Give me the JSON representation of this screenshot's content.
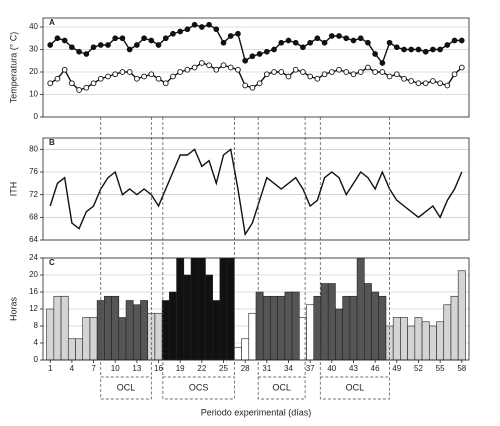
{
  "chart_data": [
    {
      "type": "line",
      "panel_label": "A",
      "ylabel": "Temperatura (° C)",
      "ylim": [
        0,
        44
      ],
      "yticks": [
        0,
        10,
        20,
        30,
        40
      ],
      "grid": true,
      "series": [
        {
          "name": "max",
          "color": "#111",
          "marker": "filled",
          "values": [
            32,
            35,
            34,
            31,
            29,
            28,
            31,
            32,
            32,
            35,
            35,
            30,
            32,
            35,
            34,
            32,
            35,
            37,
            38,
            39,
            41,
            40,
            41,
            39,
            33,
            36,
            37,
            25,
            27,
            28,
            29,
            30,
            33,
            34,
            33,
            31,
            33,
            35,
            33,
            36,
            36,
            35,
            34,
            35,
            33,
            28,
            24,
            33,
            31,
            30,
            30,
            30,
            29,
            30,
            30,
            32,
            34,
            34
          ]
        },
        {
          "name": "min",
          "color": "#111",
          "marker": "open",
          "values": [
            15,
            17,
            21,
            15,
            12,
            13,
            15,
            17,
            18,
            19,
            20,
            20,
            17,
            18,
            19,
            17,
            15,
            18,
            20,
            21,
            22,
            24,
            23,
            21,
            23,
            22,
            21,
            14,
            13,
            15,
            19,
            20,
            20,
            18,
            21,
            20,
            18,
            17,
            19,
            20,
            21,
            20,
            19,
            20,
            22,
            20,
            20,
            18,
            19,
            17,
            16,
            15,
            15,
            16,
            15,
            14,
            19,
            22
          ]
        }
      ]
    },
    {
      "type": "line",
      "panel_label": "B",
      "ylabel": "ITH",
      "ylim": [
        64,
        82
      ],
      "yticks": [
        64,
        68,
        72,
        76,
        80
      ],
      "grid": true,
      "series": [
        {
          "name": "ITH",
          "color": "#111",
          "marker": "none",
          "values": [
            70,
            74,
            75,
            67,
            66,
            69,
            70,
            73,
            75,
            76,
            72,
            73,
            72,
            73,
            72,
            70,
            73,
            76,
            79,
            79,
            80,
            77,
            78,
            74,
            79,
            80,
            73,
            65,
            67,
            71,
            75,
            74,
            73,
            74,
            75,
            73,
            70,
            71,
            75,
            76,
            75,
            72,
            74,
            76,
            75,
            73,
            76,
            73,
            71,
            70,
            69,
            68,
            69,
            70,
            68,
            71,
            73,
            76
          ]
        }
      ]
    },
    {
      "type": "bar",
      "panel_label": "C",
      "ylabel": "Horas",
      "ylim": [
        0,
        24
      ],
      "yticks": [
        0,
        4,
        8,
        12,
        16,
        20,
        24
      ],
      "grid": true,
      "values": [
        12,
        15,
        15,
        5,
        5,
        10,
        10,
        14,
        15,
        15,
        10,
        14,
        13,
        14,
        11,
        11,
        14,
        16,
        24,
        20,
        24,
        24,
        20,
        14,
        24,
        24,
        3,
        5,
        11,
        16,
        15,
        15,
        15,
        16,
        16,
        10,
        13,
        15,
        18,
        18,
        12,
        15,
        15,
        24,
        18,
        16,
        15,
        8,
        10,
        10,
        8,
        10,
        9,
        8,
        9,
        13,
        15,
        21
      ],
      "colors": [
        "#d4d4d4",
        "#d4d4d4",
        "#d4d4d4",
        "#d4d4d4",
        "#d4d4d4",
        "#d4d4d4",
        "#d4d4d4",
        "#555",
        "#555",
        "#555",
        "#555",
        "#555",
        "#555",
        "#555",
        "#d4d4d4",
        "#d4d4d4",
        "#111",
        "#111",
        "#111",
        "#111",
        "#111",
        "#111",
        "#111",
        "#111",
        "#111",
        "#111",
        "#fff",
        "#fff",
        "#fff",
        "#555",
        "#555",
        "#555",
        "#555",
        "#555",
        "#555",
        "#fff",
        "#fff",
        "#555",
        "#555",
        "#555",
        "#555",
        "#555",
        "#555",
        "#555",
        "#555",
        "#555",
        "#555",
        "#d4d4d4",
        "#d4d4d4",
        "#d4d4d4",
        "#d4d4d4",
        "#d4d4d4",
        "#d4d4d4",
        "#d4d4d4",
        "#d4d4d4",
        "#d4d4d4",
        "#d4d4d4",
        "#d4d4d4"
      ]
    }
  ],
  "x_axis": {
    "label": "Periodo experimental (días)",
    "xlim": [
      0,
      59
    ],
    "xticks": [
      1,
      4,
      7,
      10,
      13,
      16,
      19,
      22,
      25,
      28,
      31,
      34,
      37,
      40,
      43,
      46,
      49,
      52,
      55,
      58
    ],
    "x": [
      1,
      2,
      3,
      4,
      5,
      6,
      7,
      8,
      9,
      10,
      11,
      12,
      13,
      14,
      15,
      16,
      17,
      18,
      19,
      20,
      21,
      22,
      23,
      24,
      25,
      26,
      27,
      28,
      29,
      30,
      31,
      32,
      33,
      34,
      35,
      36,
      37,
      38,
      39,
      40,
      41,
      42,
      43,
      44,
      45,
      46,
      47,
      48,
      49,
      50,
      51,
      52,
      53,
      54,
      55,
      56,
      57,
      58
    ]
  },
  "periods": [
    {
      "label": "OCL",
      "start": 8,
      "end": 15
    },
    {
      "label": "OCS",
      "start": 16.6,
      "end": 26.5
    },
    {
      "label": "OCL",
      "start": 29.8,
      "end": 36.3
    },
    {
      "label": "OCL",
      "start": 38.4,
      "end": 48
    }
  ]
}
